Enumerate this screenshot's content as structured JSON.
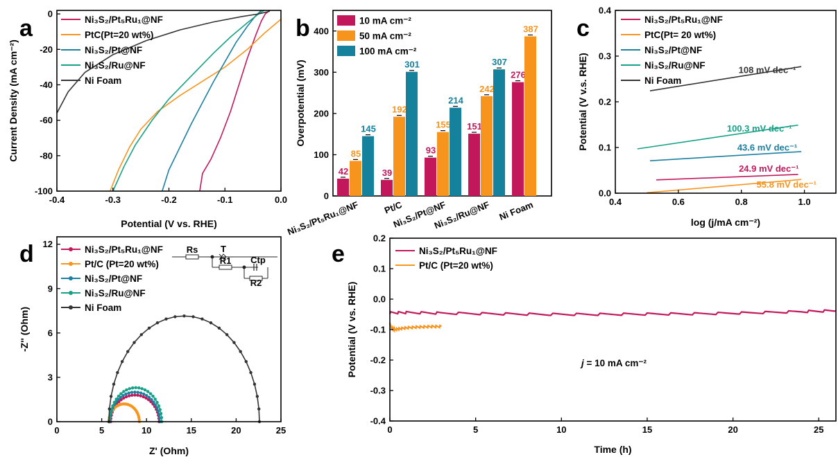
{
  "colors": {
    "pt5ru1": "#c2185b",
    "ptc": "#f7941d",
    "pt": "#1a7fa0",
    "ru": "#16a085",
    "nifoam": "#333333",
    "bar10": "#c2185b",
    "bar50": "#f7941d",
    "bar100": "#15819c"
  },
  "chart_data": [
    {
      "panel": "a",
      "type": "line",
      "xlabel": "Potential (V vs. RHE)",
      "ylabel": "Current Density (mA cm⁻²)",
      "xlim": [
        -0.4,
        0.0
      ],
      "ylim": [
        -100,
        2
      ],
      "xticks": [
        "-0.4",
        "-0.3",
        "-0.2",
        "-0.1",
        "0.0"
      ],
      "yticks": [
        "0",
        "-20",
        "-40",
        "-60",
        "-80",
        "-100"
      ],
      "legend_position": "top-left",
      "series": [
        {
          "name": "Ni₃S₂/Pt₅Ru₁@NF",
          "color_key": "pt5ru1",
          "x": [
            -0.145,
            -0.14,
            -0.125,
            -0.108,
            -0.09,
            -0.075,
            -0.06,
            -0.045,
            -0.035,
            -0.028,
            -0.022,
            -0.02
          ],
          "y": [
            -100,
            -90,
            -82,
            -70,
            -55,
            -40,
            -25,
            -12,
            -4,
            0,
            1.5,
            2
          ]
        },
        {
          "name": "PtC(Pt=20 wt%)",
          "color_key": "ptc",
          "x": [
            -0.305,
            -0.29,
            -0.27,
            -0.25,
            -0.22,
            -0.18,
            -0.14,
            -0.1,
            -0.06,
            -0.03,
            0.0
          ],
          "y": [
            -100,
            -88,
            -75,
            -65,
            -55,
            -46,
            -38,
            -30,
            -20,
            -11,
            -3
          ]
        },
        {
          "name": "Ni₃S₂/Pt@NF",
          "color_key": "pt",
          "x": [
            -0.212,
            -0.2,
            -0.18,
            -0.16,
            -0.14,
            -0.12,
            -0.1,
            -0.08,
            -0.06,
            -0.045,
            -0.035
          ],
          "y": [
            -100,
            -88,
            -75,
            -62,
            -50,
            -38,
            -27,
            -16,
            -7,
            -1,
            2
          ]
        },
        {
          "name": "Ni₃S₂/Ru@NF",
          "color_key": "ru",
          "x": [
            -0.3,
            -0.28,
            -0.26,
            -0.23,
            -0.2,
            -0.16,
            -0.12,
            -0.09,
            -0.06,
            -0.04,
            -0.03
          ],
          "y": [
            -100,
            -86,
            -74,
            -60,
            -48,
            -35,
            -22,
            -13,
            -5,
            0,
            2
          ]
        },
        {
          "name": "Ni Foam",
          "color_key": "nifoam",
          "x": [
            -0.4,
            -0.38,
            -0.35,
            -0.3,
            -0.24,
            -0.18,
            -0.12,
            -0.07,
            -0.04,
            -0.02
          ],
          "y": [
            -56,
            -44,
            -33,
            -23,
            -15,
            -9,
            -4.5,
            -1.5,
            0,
            1.5
          ]
        }
      ]
    },
    {
      "panel": "b",
      "type": "bar",
      "ylabel": "Overpotential (mV)",
      "ylim": [
        0,
        450
      ],
      "yticks": [
        "0",
        "100",
        "200",
        "300",
        "400"
      ],
      "categories": [
        "Ni₃S₂/Pt₅Ru₁@NF",
        "Pt/C",
        "Ni₃S₂/Pt@NF",
        "Ni₃S₂/Ru@NF",
        "Ni Foam"
      ],
      "legend_position": "top-left",
      "series": [
        {
          "name": "10 mA cm⁻²",
          "color_key": "bar10",
          "values": [
            42,
            39,
            93,
            151,
            276
          ],
          "labels": [
            "42",
            "39",
            "93",
            "151",
            "276"
          ]
        },
        {
          "name": "50 mA cm⁻²",
          "color_key": "bar50",
          "values": [
            85,
            192,
            155,
            242,
            387
          ],
          "labels": [
            "85",
            "192",
            "155",
            "242",
            "387"
          ]
        },
        {
          "name": "100 mA cm⁻²",
          "color_key": "bar100",
          "values": [
            145,
            301,
            214,
            307,
            null
          ],
          "labels": [
            "145",
            "301",
            "214",
            "307",
            ""
          ]
        }
      ]
    },
    {
      "panel": "c",
      "type": "line",
      "xlabel": "log (j/mA cm⁻²)",
      "ylabel": "Potential (V v.s. RHE)",
      "xlim": [
        0.4,
        1.1
      ],
      "ylim": [
        0.0,
        0.4
      ],
      "xticks": [
        "0.4",
        "0.6",
        "0.8",
        "1.0"
      ],
      "yticks": [
        "0.0",
        "0.1",
        "0.2",
        "0.3",
        "0.4"
      ],
      "legend_position": "top-left",
      "series": [
        {
          "name": "Ni₃S₂/Pt₅Ru₁@NF",
          "color_key": "pt5ru1",
          "x": [
            0.53,
            0.98
          ],
          "y": [
            0.029,
            0.041
          ],
          "annotation": "24.9 mV dec⁻¹"
        },
        {
          "name": "PtC(Pt= 20 wt%)",
          "color_key": "ptc",
          "x": [
            0.5,
            0.99
          ],
          "y": [
            0.001,
            0.03
          ],
          "annotation": "55.8 mV dec⁻¹"
        },
        {
          "name": "Ni₃S₂/Pt@NF",
          "color_key": "pt",
          "x": [
            0.51,
            0.99
          ],
          "y": [
            0.071,
            0.091
          ],
          "annotation": "43.6 mV dec⁻¹"
        },
        {
          "name": "Ni₃S₂/Ru@NF",
          "color_key": "ru",
          "x": [
            0.47,
            0.98
          ],
          "y": [
            0.097,
            0.149
          ],
          "annotation": "100.3 mV dec⁻¹"
        },
        {
          "name": "Ni Foam",
          "color_key": "nifoam",
          "x": [
            0.51,
            0.99
          ],
          "y": [
            0.224,
            0.277
          ],
          "annotation": "108 mV dec⁻¹"
        }
      ]
    },
    {
      "panel": "d",
      "type": "scatter",
      "xlabel": "Z' (Ohm)",
      "ylabel": "-Z'' (Ohm)",
      "xlim": [
        0,
        25
      ],
      "ylim": [
        0,
        12.5
      ],
      "xticks": [
        "0",
        "5",
        "10",
        "15",
        "20",
        "25"
      ],
      "yticks": [
        "0",
        "3",
        "6",
        "9",
        "12"
      ],
      "legend_position": "top-left",
      "inset": "equivalent circuit: Rs, T, R1, Ctp, R2",
      "inset_labels": [
        "Rs",
        "T",
        "R1",
        "Ctp",
        "R2"
      ],
      "series": [
        {
          "name": "Ni₃S₂/Pt₅Ru₁@NF",
          "color_key": "pt5ru1",
          "center": 8.7,
          "radius": 2.7,
          "height": 1.8
        },
        {
          "name": "Pt/C (Pt=20 wt%)",
          "color_key": "ptc",
          "center": 7.5,
          "radius": 1.7,
          "height": 1.2
        },
        {
          "name": "Ni₃S₂/Pt@NF",
          "color_key": "pt",
          "center": 8.7,
          "radius": 2.8,
          "height": 2.0
        },
        {
          "name": "Ni₃S₂/Ru@NF",
          "color_key": "ru",
          "center": 8.8,
          "radius": 2.9,
          "height": 2.3
        },
        {
          "name": "Ni Foam",
          "color_key": "nifoam",
          "center": 14.2,
          "radius": 8.4,
          "height": 7.15
        }
      ]
    },
    {
      "panel": "e",
      "type": "line",
      "xlabel": "Time (h)",
      "ylabel": "Potential (V vs. RHE)",
      "xlim": [
        0,
        26
      ],
      "ylim": [
        -0.4,
        0.2
      ],
      "xticks": [
        "0",
        "5",
        "10",
        "15",
        "20",
        "25"
      ],
      "yticks": [
        "0.2",
        "0.1",
        "0.0",
        "-0.1",
        "-0.2",
        "-0.3",
        "-0.4"
      ],
      "legend_position": "top-left",
      "annotation": "j = 10 mA cm⁻²",
      "annotation_j": "j",
      "annotation_rest": " = 10 mA cm⁻²",
      "series": [
        {
          "name": "Ni₃S₂/Pt₅Ru₁@NF",
          "color_key": "pt5ru1",
          "x": [
            0,
            1,
            3,
            6,
            9,
            12,
            15,
            18,
            21,
            24,
            26
          ],
          "y": [
            -0.045,
            -0.044,
            -0.046,
            -0.048,
            -0.05,
            -0.05,
            -0.049,
            -0.048,
            -0.045,
            -0.041,
            -0.038
          ]
        },
        {
          "name": "Pt/C (Pt=20 wt%)",
          "color_key": "ptc",
          "x": [
            0,
            0.1,
            0.3,
            0.6,
            1.0,
            1.5,
            2.0,
            2.5,
            3.0
          ],
          "y": [
            -0.08,
            -0.095,
            -0.1,
            -0.097,
            -0.094,
            -0.092,
            -0.091,
            -0.09,
            -0.09
          ]
        }
      ]
    }
  ]
}
